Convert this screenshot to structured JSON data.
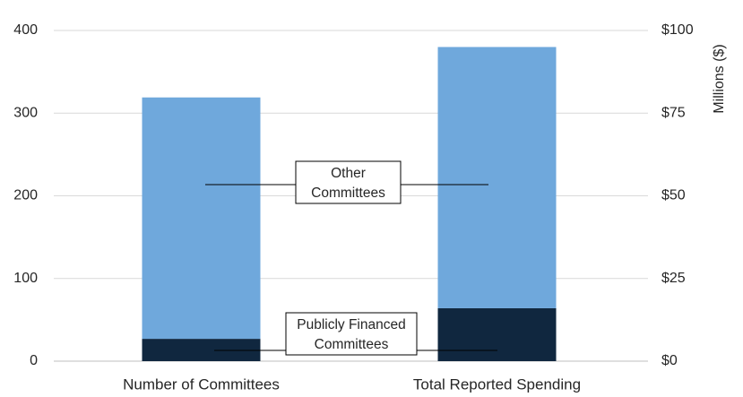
{
  "chart_data": {
    "type": "bar",
    "stacked": true,
    "categories": [
      "Number of Committees",
      "Total Reported Spending"
    ],
    "series": [
      {
        "name": "Publicly Financed Committees",
        "values": [
          27,
          16
        ],
        "color": "#10273f"
      },
      {
        "name": "Other Committees",
        "values": [
          292,
          79
        ],
        "color": "#6fa8dc"
      }
    ],
    "left_axis": {
      "ylim": [
        0,
        400
      ],
      "ticks": [
        0,
        100,
        200,
        300,
        400
      ],
      "tick_labels": [
        "0",
        "100",
        "200",
        "300",
        "400"
      ]
    },
    "right_axis": {
      "ylim": [
        0,
        100
      ],
      "ticks": [
        0,
        25,
        50,
        75,
        100
      ],
      "tick_labels": [
        "$0",
        "$25",
        "$50",
        "$75",
        "$100"
      ],
      "label": "Millions ($)"
    },
    "category_axis": [
      0,
      1
    ],
    "grid": true,
    "callouts": [
      {
        "lines": [
          "Other",
          "Committees"
        ]
      },
      {
        "lines": [
          "Publicly Financed",
          "Committees"
        ]
      }
    ]
  }
}
